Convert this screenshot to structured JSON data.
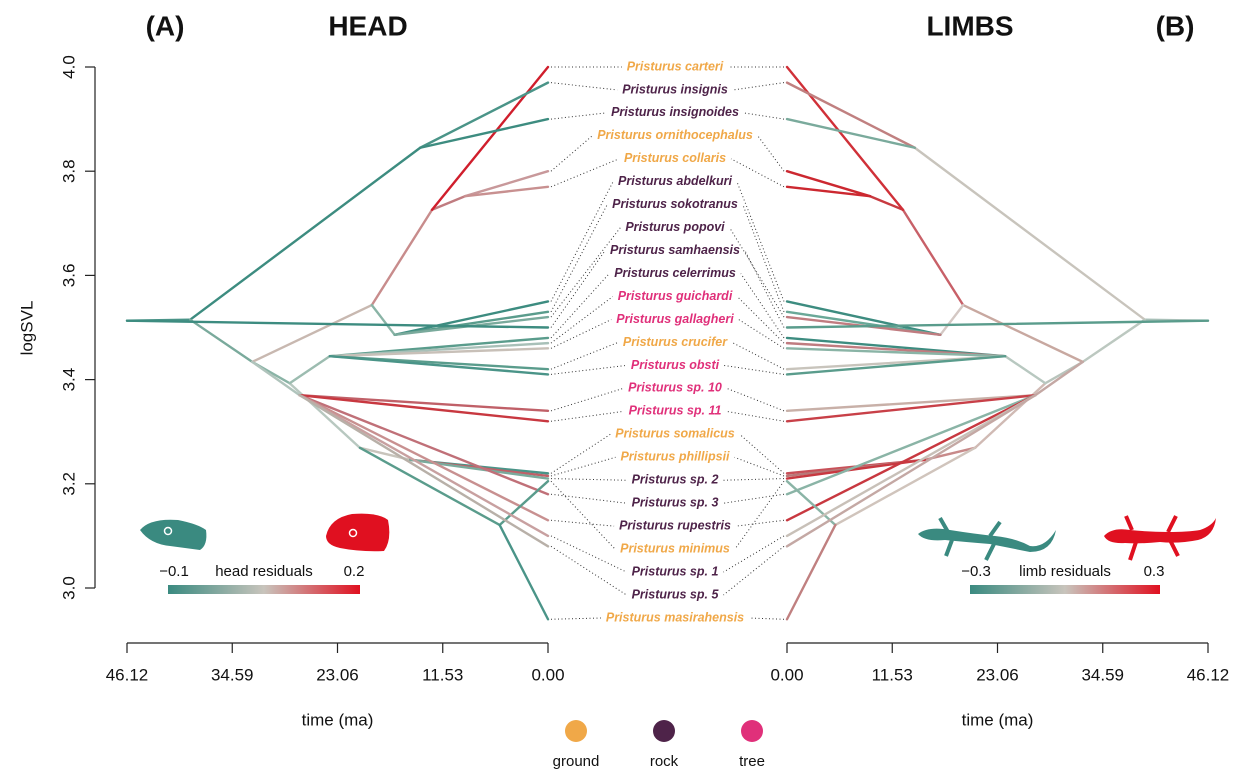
{
  "chart_data": {
    "type": "phenogram",
    "ylabel": "logSVL",
    "ylim": [
      3.0,
      4.0
    ],
    "yticks": [
      {
        "value": 3,
        "label": "3.0"
      },
      3.2,
      3.4,
      3.6,
      3.8,
      {
        "value": 4,
        "label": "4.0"
      }
    ],
    "panels": [
      {
        "tag": "(A)",
        "title": "HEAD",
        "xlabel": "time (ma)",
        "xlim": [
          46.12,
          0
        ],
        "xticks": [
          46.12,
          34.59,
          23.06,
          11.53,
          {
            "value": 0,
            "label": "0.00"
          }
        ],
        "legend": {
          "label": "head residuals",
          "ticks": [
            {
              "value": -0.1,
              "label": "−0.1"
            },
            0.2
          ],
          "colors": [
            "#3a8a80",
            "#c8c4bc",
            "#e01020"
          ]
        }
      },
      {
        "tag": "(B)",
        "title": "LIMBS",
        "xlabel": "time (ma)",
        "xlim": [
          0,
          46.12
        ],
        "xticks": [
          {
            "value": 0,
            "label": "0.00"
          },
          11.53,
          23.06,
          34.59,
          46.12
        ],
        "legend": {
          "label": "limb residuals",
          "ticks": [
            {
              "value": -0.3,
              "label": "−0.3"
            },
            0.3
          ],
          "colors": [
            "#3a8a80",
            "#c8c4bc",
            "#e01020"
          ]
        }
      }
    ],
    "habitats": [
      {
        "name": "ground",
        "color": "#f0a848"
      },
      {
        "name": "rock",
        "color": "#4e2349"
      },
      {
        "name": "tree",
        "color": "#e0307a"
      }
    ],
    "nodes": [
      {
        "parent": null,
        "time": 46.12,
        "logSVL": 3.513,
        "colors": [
          "#3d8c80",
          "#b8c4bc"
        ]
      },
      {
        "parent": 0,
        "time": 39.2,
        "logSVL": 3.515,
        "colors": [
          "#4a9488",
          "#a8c0b8"
        ]
      },
      {
        "parent": 1,
        "time": 14.0,
        "logSVL": 3.845,
        "colors": [
          "#3d8c80",
          "#c8c4bc"
        ]
      },
      {
        "parent": 1,
        "time": 32.4,
        "logSVL": 3.434,
        "colors": [
          "#7aaa9c",
          "#bcc8c0"
        ]
      },
      {
        "parent": 3,
        "time": 28.3,
        "logSVL": 3.393,
        "colors": [
          "#8ab4a6",
          "#b8c4bc"
        ]
      },
      {
        "parent": 3,
        "time": 19.3,
        "logSVL": 3.543,
        "colors": [
          "#c8b8b0",
          "#c8a8a0"
        ]
      },
      {
        "parent": 5,
        "time": 12.7,
        "logSVL": 3.726,
        "colors": [
          "#c88c8c",
          "#c86068"
        ]
      },
      {
        "parent": 6,
        "time": 9.1,
        "logSVL": 3.752,
        "colors": [
          "#c07c80",
          "#c83a40"
        ]
      },
      {
        "parent": 5,
        "time": 16.8,
        "logSVL": 3.486,
        "colors": [
          "#8ab4a6",
          "#d4c8c4"
        ]
      },
      {
        "parent": 4,
        "time": 20.6,
        "logSVL": 3.269,
        "colors": [
          "#b8c8c0",
          "#d0bab4"
        ]
      },
      {
        "parent": 9,
        "time": 15.1,
        "logSVL": 3.246,
        "colors": [
          "#c8c4bc",
          "#c88a8a"
        ]
      },
      {
        "parent": 9,
        "time": 5.3,
        "logSVL": 3.121,
        "colors": [
          "#5a9c8c",
          "#d0c4bc"
        ]
      },
      {
        "parent": 4,
        "time": 23.9,
        "logSVL": 3.445,
        "colors": [
          "#9cbcb0",
          "#b8c8c0"
        ]
      },
      {
        "parent": 3,
        "time": 27.2,
        "logSVL": 3.37,
        "colors": [
          "#b0c4bc",
          "#c4a8a4"
        ]
      }
    ],
    "tips": [
      {
        "label": "Pristurus carteri",
        "habitat": "ground",
        "parent": 6,
        "logSVL": 4.0,
        "colors": [
          "#d01e2c",
          "#d03038"
        ]
      },
      {
        "label": "Pristurus insignis",
        "habitat": "rock",
        "parent": 2,
        "logSVL": 3.97,
        "colors": [
          "#4a9488",
          "#c08080"
        ]
      },
      {
        "label": "Pristurus insignoides",
        "habitat": "rock",
        "parent": 2,
        "logSVL": 3.9,
        "colors": [
          "#3d8c80",
          "#7aaa9c"
        ]
      },
      {
        "label": "Pristurus ornithocephalus",
        "habitat": "ground",
        "parent": 7,
        "logSVL": 3.8,
        "colors": [
          "#c8989a",
          "#cc2830"
        ]
      },
      {
        "label": "Pristurus collaris",
        "habitat": "ground",
        "parent": 7,
        "logSVL": 3.77,
        "colors": [
          "#c89090",
          "#cc2830"
        ]
      },
      {
        "label": "Pristurus abdelkuri",
        "habitat": "rock",
        "parent": 8,
        "logSVL": 3.55,
        "colors": [
          "#3d8c80",
          "#3d8c80"
        ]
      },
      {
        "label": "Pristurus sokotranus",
        "habitat": "rock",
        "parent": 8,
        "logSVL": 3.53,
        "colors": [
          "#5a9c8c",
          "#6aa898"
        ]
      },
      {
        "label": "Pristurus popovi",
        "habitat": "rock",
        "parent": 8,
        "logSVL": 3.52,
        "colors": [
          "#7aaa9c",
          "#c07c80"
        ]
      },
      {
        "label": "Pristurus samhaensis",
        "habitat": "rock",
        "parent": 0,
        "logSVL": 3.5,
        "colors": [
          "#3d8c80",
          "#5a9c8c"
        ]
      },
      {
        "label": "Pristurus celerrimus",
        "habitat": "rock",
        "parent": 12,
        "logSVL": 3.48,
        "colors": [
          "#5a9c8c",
          "#3d8c80"
        ]
      },
      {
        "label": "Pristurus guichardi",
        "habitat": "tree",
        "parent": 12,
        "logSVL": 3.47,
        "colors": [
          "#a8c0b8",
          "#c07c80"
        ]
      },
      {
        "label": "Pristurus gallagheri",
        "habitat": "tree",
        "parent": 12,
        "logSVL": 3.46,
        "colors": [
          "#c8c0b8",
          "#8ab4a6"
        ]
      },
      {
        "label": "Pristurus crucifer",
        "habitat": "ground",
        "parent": 12,
        "logSVL": 3.42,
        "colors": [
          "#5a9c8c",
          "#c8c4bc"
        ]
      },
      {
        "label": "Pristurus obsti",
        "habitat": "tree",
        "parent": 12,
        "logSVL": 3.41,
        "colors": [
          "#4a9488",
          "#5a9c8c"
        ]
      },
      {
        "label": "Pristurus sp. 10",
        "habitat": "tree",
        "parent": 13,
        "logSVL": 3.34,
        "colors": [
          "#c06068",
          "#c8b0a8"
        ]
      },
      {
        "label": "Pristurus sp. 11",
        "habitat": "tree",
        "parent": 13,
        "logSVL": 3.32,
        "colors": [
          "#c83840",
          "#c84048"
        ]
      },
      {
        "label": "Pristurus somalicus",
        "habitat": "ground",
        "parent": 10,
        "logSVL": 3.22,
        "colors": [
          "#4a9488",
          "#c85058"
        ]
      },
      {
        "label": "Pristurus phillipsii",
        "habitat": "ground",
        "parent": 10,
        "logSVL": 3.215,
        "colors": [
          "#c06068",
          "#b87878"
        ]
      },
      {
        "label": "Pristurus sp. 2",
        "habitat": "rock",
        "parent": 10,
        "logSVL": 3.21,
        "colors": [
          "#7aaa9c",
          "#c83840"
        ]
      },
      {
        "label": "Pristurus sp. 3",
        "habitat": "rock",
        "parent": 13,
        "logSVL": 3.18,
        "colors": [
          "#c07078",
          "#8ab4a6"
        ]
      },
      {
        "label": "Pristurus rupestris",
        "habitat": "rock",
        "parent": 13,
        "logSVL": 3.13,
        "colors": [
          "#c89090",
          "#c83840"
        ]
      },
      {
        "label": "Pristurus minimus",
        "habitat": "ground",
        "parent": 11,
        "logSVL": 3.205,
        "colors": [
          "#5a9c8c",
          "#8ab4a6"
        ]
      },
      {
        "label": "Pristurus sp. 1",
        "habitat": "rock",
        "parent": 13,
        "logSVL": 3.1,
        "colors": [
          "#c8a0a0",
          "#c8c0b8"
        ]
      },
      {
        "label": "Pristurus sp. 5",
        "habitat": "rock",
        "parent": 13,
        "logSVL": 3.08,
        "colors": [
          "#b8b0a8",
          "#c4a8a4"
        ]
      },
      {
        "label": "Pristurus masirahensis",
        "habitat": "ground",
        "parent": 11,
        "logSVL": 2.94,
        "colors": [
          "#4a9488",
          "#c08080"
        ]
      }
    ]
  }
}
